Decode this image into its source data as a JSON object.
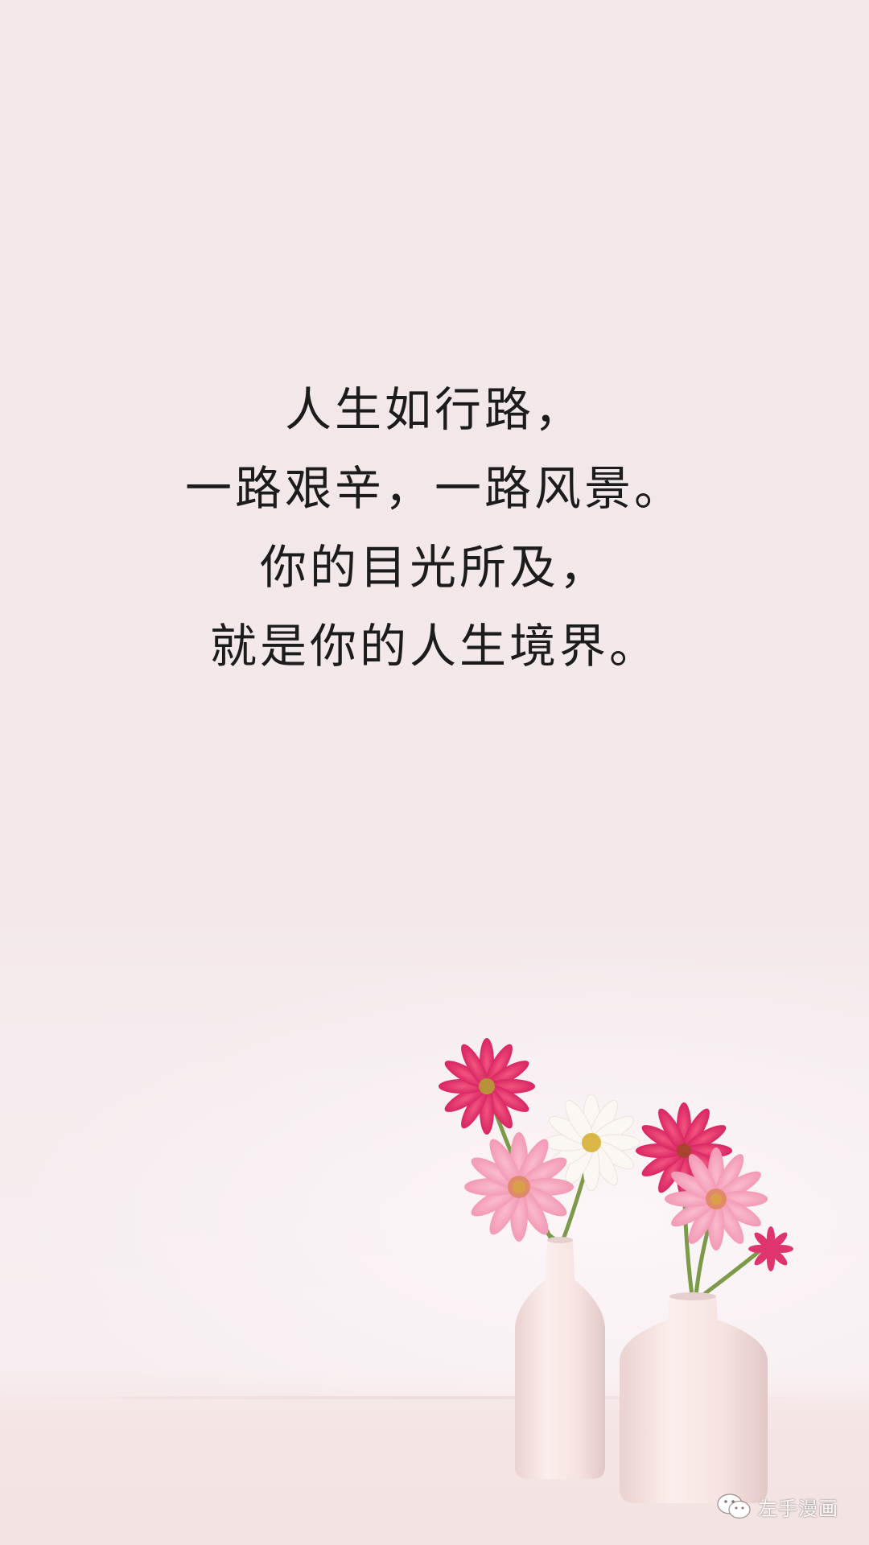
{
  "quote": {
    "lines": [
      "人生如行路，",
      "一路艰辛，一路风景。",
      "你的目光所及，",
      "就是你的人生境界。"
    ],
    "color": "#1c1c1c"
  },
  "watermark": {
    "icon": "wechat-icon",
    "label": "左手漫画"
  },
  "colors": {
    "background": "#f2e8ea",
    "vase": "#f7e6e4",
    "flower_magenta": "#e0346e",
    "flower_pink": "#f5aac2",
    "flower_white": "#fbf8f4"
  }
}
